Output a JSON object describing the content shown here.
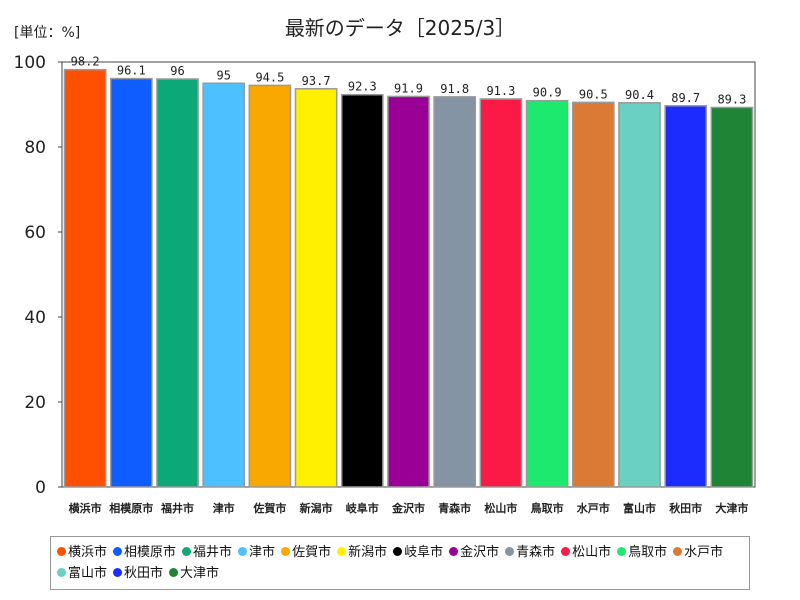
{
  "unit_label": "[単位：%]",
  "chart_data": {
    "type": "bar",
    "title": "最新のデータ［2025/3］",
    "xlabel": "",
    "ylabel": "",
    "ylim": [
      0,
      100
    ],
    "yticks": [
      0,
      20,
      40,
      60,
      80,
      100
    ],
    "grid": false,
    "legend_position": "bottom",
    "categories": [
      "横浜市",
      "相模原市",
      "福井市",
      "津市",
      "佐賀市",
      "新潟市",
      "岐阜市",
      "金沢市",
      "青森市",
      "松山市",
      "鳥取市",
      "水戸市",
      "富山市",
      "秋田市",
      "大津市"
    ],
    "values": [
      98.2,
      96.1,
      96,
      95,
      94.5,
      93.7,
      92.3,
      91.9,
      91.8,
      91.3,
      90.9,
      90.5,
      90.4,
      89.7,
      89.3
    ],
    "value_labels": [
      "98.2",
      "96.1",
      "96",
      "95",
      "94.5",
      "93.7",
      "92.3",
      "91.9",
      "91.8",
      "91.3",
      "90.9",
      "90.5",
      "90.4",
      "89.7",
      "89.3"
    ],
    "colors": [
      "#ff4f00",
      "#0f5cff",
      "#0ca878",
      "#4dc0ff",
      "#f8a800",
      "#fff000",
      "#000000",
      "#9a0096",
      "#8494a2",
      "#fb1a46",
      "#1de96e",
      "#da7a34",
      "#6ad0c2",
      "#1c2cff",
      "#1f8436"
    ]
  }
}
